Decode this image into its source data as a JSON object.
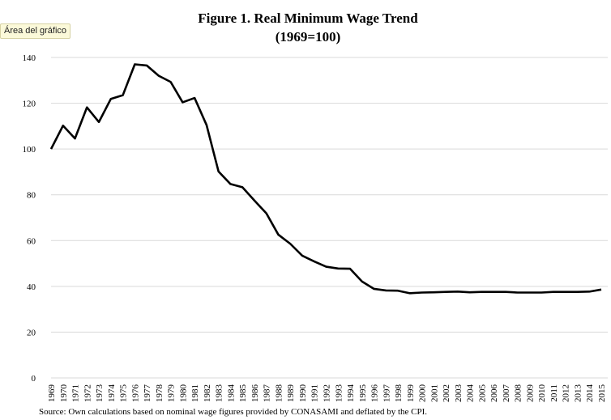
{
  "tooltip": "Área del gráfico",
  "chart_data": {
    "type": "line",
    "title": "Figure 1. Real Minimum Wage Trend",
    "subtitle": "(1969=100)",
    "source": "Source: Own calculations based on nominal wage figures provided by CONASAMI and deflated by the CPI.",
    "xlabel": "",
    "ylabel": "",
    "ylim": [
      0,
      140
    ],
    "yticks": [
      0,
      20,
      40,
      60,
      80,
      100,
      120,
      140
    ],
    "grid": true,
    "categories": [
      "1969",
      "1970",
      "1971",
      "1972",
      "1973",
      "1974",
      "1975",
      "1976",
      "1977",
      "1978",
      "1979",
      "1980",
      "1981",
      "1982",
      "1983",
      "1984",
      "1985",
      "1986",
      "1987",
      "1988",
      "1989",
      "1990",
      "1991",
      "1992",
      "1993",
      "1994",
      "1995",
      "1996",
      "1997",
      "1998",
      "1999",
      "2000",
      "2001",
      "2002",
      "2003",
      "2004",
      "2005",
      "2006",
      "2007",
      "2008",
      "2009",
      "2010",
      "2011",
      "2012",
      "2013",
      "2014",
      "2015"
    ],
    "series": [
      {
        "values": [
          100,
          110.2,
          104.6,
          118.2,
          111.8,
          121.9,
          123.5,
          137.0,
          136.5,
          132.0,
          129.3,
          120.4,
          122.3,
          110.5,
          90.2,
          84.7,
          83.3,
          77.5,
          71.9,
          62.6,
          58.6,
          53.4,
          50.9,
          48.6,
          47.8,
          47.7,
          42.1,
          38.9,
          38.2,
          38.1,
          37.0,
          37.3,
          37.4,
          37.6,
          37.7,
          37.4,
          37.6,
          37.6,
          37.6,
          37.3,
          37.3,
          37.3,
          37.6,
          37.6,
          37.6,
          37.7,
          38.6
        ]
      }
    ]
  }
}
